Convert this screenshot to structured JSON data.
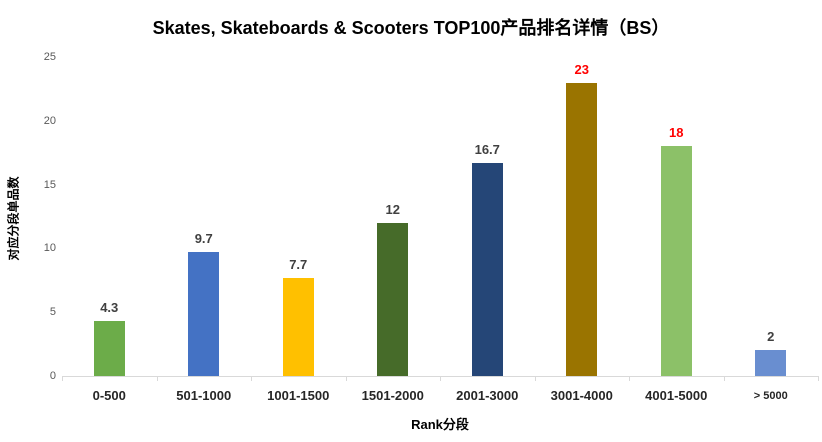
{
  "title": "Skates, Skateboards & Scooters TOP100产品排名详情（BS）",
  "chart_data": {
    "type": "bar",
    "title": "Skates, Skateboards & Scooters TOP100产品排名详情（BS）",
    "xlabel": "Rank分段",
    "ylabel": "对应分段单品数",
    "categories": [
      "0-500",
      "501-1000",
      "1001-1500",
      "1501-2000",
      "2001-3000",
      "3001-4000",
      "4001-5000",
      "> 5000"
    ],
    "values": [
      4.3,
      9.7,
      7.7,
      12,
      16.7,
      23,
      18,
      2
    ],
    "data_labels": [
      "4.3",
      "9.7",
      "7.7",
      "12",
      "16.7",
      "23",
      "18",
      "2"
    ],
    "data_label_colors": [
      "#404040",
      "#404040",
      "#404040",
      "#404040",
      "#404040",
      "#ff0000",
      "#ff0000",
      "#404040"
    ],
    "bar_colors": [
      "#6cac49",
      "#4472c4",
      "#ffc000",
      "#466b29",
      "#254677",
      "#9a7400",
      "#8cc168",
      "#698ed0"
    ],
    "yticks": [
      0,
      5,
      10,
      15,
      20,
      25
    ],
    "ylim": [
      0,
      25
    ],
    "grid": false,
    "legend": "none",
    "plot_bg": "#ffffff",
    "axis_line_color": "#d9d9d9"
  }
}
